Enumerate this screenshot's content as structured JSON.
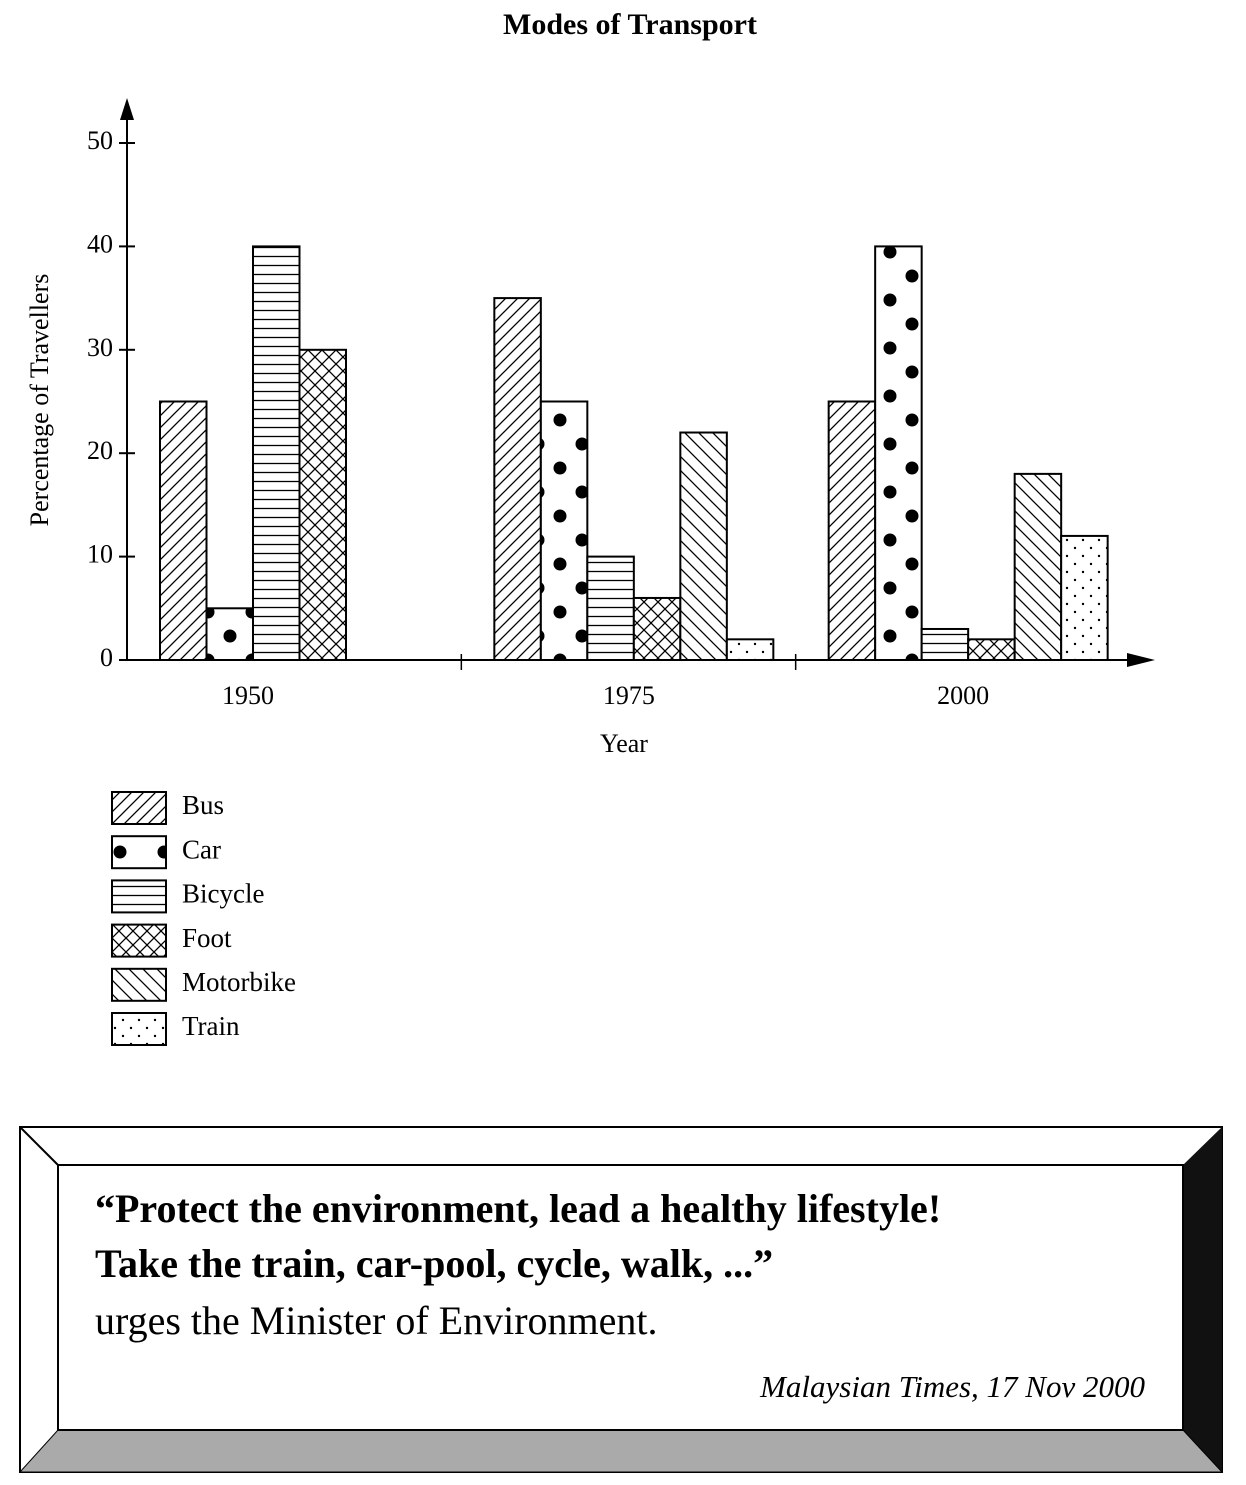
{
  "chart_data": {
    "type": "bar",
    "title": "Modes of Transport",
    "x_label": "Year",
    "y_label": "Percentage of Travellers",
    "categories": [
      "1950",
      "1975",
      "2000"
    ],
    "series": [
      {
        "name": "Bus",
        "color": "#000000",
        "pattern": "diagonal-up",
        "values": [
          25,
          35,
          25
        ]
      },
      {
        "name": "Car",
        "color": "#000000",
        "pattern": "large-dots",
        "values": [
          5,
          25,
          40
        ]
      },
      {
        "name": "Bicycle",
        "color": "#000000",
        "pattern": "horizontal",
        "values": [
          40,
          10,
          3
        ]
      },
      {
        "name": "Foot",
        "color": "#000000",
        "pattern": "crosshatch",
        "values": [
          30,
          6,
          2
        ]
      },
      {
        "name": "Motorbike",
        "color": "#000000",
        "pattern": "diagonal-down",
        "values": [
          null,
          22,
          18
        ]
      },
      {
        "name": "Train",
        "color": "#000000",
        "pattern": "small-dots",
        "values": [
          null,
          2,
          12
        ]
      }
    ],
    "ylim": [
      0,
      50
    ],
    "yticks": [
      0,
      10,
      20,
      30,
      40,
      50
    ],
    "grid": false
  },
  "quote": {
    "lines": [
      "“Protect the environment, lead a healthy lifestyle!",
      "Take the train, car-pool, cycle, walk, ...”",
      "urges the Minister of Environment."
    ],
    "source": "Malaysian Times, 17 Nov 2000"
  }
}
